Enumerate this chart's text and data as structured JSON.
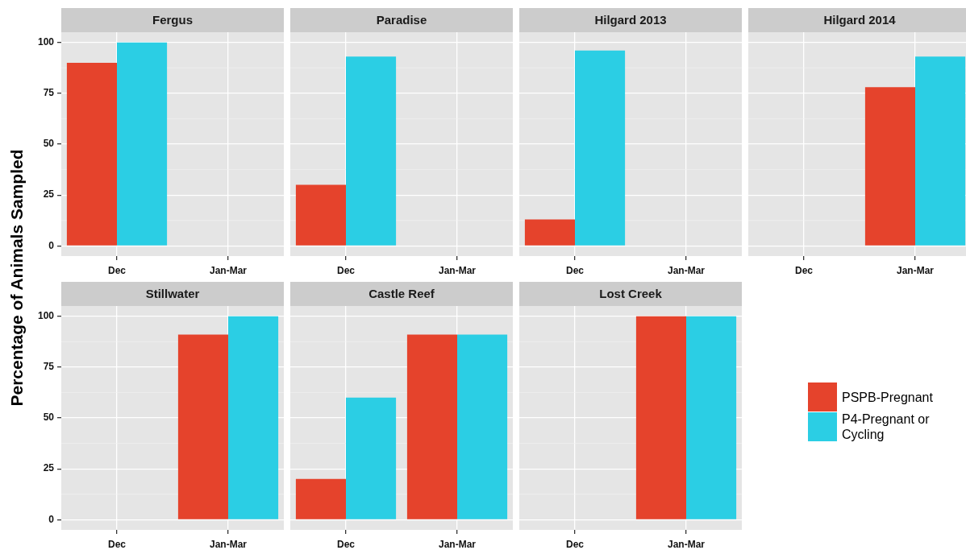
{
  "chart_data": [
    {
      "type": "bar",
      "title": "Fergus",
      "ylabel": "Percentage of Animals Sampled",
      "categories": [
        "Dec",
        "Jan-Mar"
      ],
      "series": [
        {
          "name": "PSPB-Pregnant",
          "color": "#e5432c",
          "values": [
            90,
            null
          ]
        },
        {
          "name": "P4-Pregnant or Cycling",
          "color": "#2bcee4",
          "values": [
            100,
            null
          ]
        }
      ],
      "ylim": [
        -5,
        105
      ],
      "yticks": [
        0,
        25,
        50,
        75,
        100
      ],
      "grid": true,
      "legend": "right"
    },
    {
      "type": "bar",
      "title": "Paradise",
      "categories": [
        "Dec",
        "Jan-Mar"
      ],
      "series": [
        {
          "color": "#e5432c",
          "values": [
            30,
            null
          ]
        },
        {
          "color": "#2bcee4",
          "values": [
            93,
            null
          ]
        }
      ],
      "ylim": [
        -5,
        105
      ],
      "yticks": [
        0,
        25,
        50,
        75,
        100
      ],
      "grid": true,
      "tick_labels": "x"
    },
    {
      "type": "bar",
      "title": "Hilgard 2013",
      "categories": [
        "Dec",
        "Jan-Mar"
      ],
      "series": [
        {
          "color": "#e5432c",
          "values": [
            13,
            null
          ]
        },
        {
          "color": "#2bcee4",
          "values": [
            96,
            null
          ]
        }
      ],
      "ylim": [
        -5,
        105
      ],
      "yticks": [
        0,
        25,
        50,
        75,
        100
      ],
      "grid": true,
      "tick_labels": "x"
    },
    {
      "type": "bar",
      "title": "Hilgard 2014",
      "categories": [
        "Dec",
        "Jan-Mar"
      ],
      "series": [
        {
          "color": "#e5432c",
          "values": [
            null,
            78
          ]
        },
        {
          "color": "#2bcee4",
          "values": [
            null,
            93
          ]
        }
      ],
      "ylim": [
        -5,
        105
      ],
      "yticks": [
        0,
        25,
        50,
        75,
        100
      ],
      "grid": true,
      "tick_labels": "x"
    },
    {
      "type": "bar",
      "title": "Stillwater",
      "categories": [
        "Dec",
        "Jan-Mar"
      ],
      "series": [
        {
          "color": "#e5432c",
          "values": [
            null,
            91
          ]
        },
        {
          "color": "#2bcee4",
          "values": [
            null,
            100
          ]
        }
      ],
      "ylim": [
        -5,
        105
      ],
      "yticks": [
        0,
        25,
        50,
        75,
        100
      ],
      "grid": true
    },
    {
      "type": "bar",
      "title": "Castle Reef",
      "categories": [
        "Dec",
        "Jan-Mar"
      ],
      "series": [
        {
          "color": "#e5432c",
          "values": [
            20,
            91
          ]
        },
        {
          "color": "#2bcee4",
          "values": [
            60,
            91
          ]
        }
      ],
      "ylim": [
        -5,
        105
      ],
      "yticks": [
        0,
        25,
        50,
        75,
        100
      ],
      "grid": true,
      "tick_labels": "x"
    },
    {
      "type": "bar",
      "title": "Lost Creek",
      "categories": [
        "Dec",
        "Jan-Mar"
      ],
      "series": [
        {
          "color": "#e5432c",
          "values": [
            null,
            100
          ]
        },
        {
          "color": "#2bcee4",
          "values": [
            null,
            100
          ]
        }
      ],
      "ylim": [
        -5,
        105
      ],
      "yticks": [
        0,
        25,
        50,
        75,
        100
      ],
      "grid": true,
      "tick_labels": "x"
    }
  ]
}
